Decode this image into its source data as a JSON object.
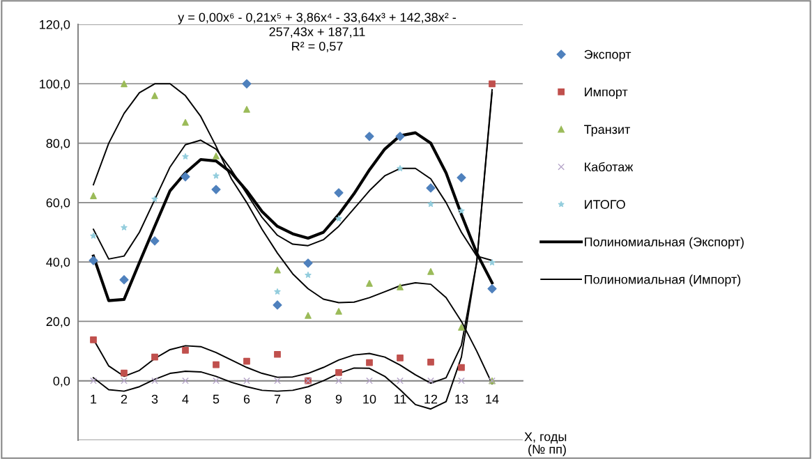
{
  "chart_data": {
    "type": "scatter",
    "annotations": [
      "y = 0,00x⁶ - 0,21x⁵ + 3,86x⁴ - 33,64x³ + 142,38x² -\n257,43x + 187,11\nR² = 0,57"
    ],
    "xlabel": "X, годы\n (№ пп)",
    "x": [
      1,
      2,
      3,
      4,
      5,
      6,
      7,
      8,
      9,
      10,
      11,
      12,
      13,
      14
    ],
    "xlim": [
      0.5,
      15
    ],
    "xticks": [
      1,
      2,
      3,
      4,
      5,
      6,
      7,
      8,
      9,
      10,
      11,
      12,
      13,
      14
    ],
    "ylim": [
      -20,
      120
    ],
    "yticks": [
      {
        "value": -20,
        "label": null
      },
      {
        "value": 0,
        "label": "0,0"
      },
      {
        "value": 20,
        "label": "20,0"
      },
      {
        "value": 40,
        "label": "40,0"
      },
      {
        "value": 60,
        "label": "60,0"
      },
      {
        "value": 80,
        "label": "80,0"
      },
      {
        "value": 100,
        "label": "100,0"
      },
      {
        "value": 120,
        "label": "120,0"
      }
    ],
    "grid": "y",
    "legend": "right",
    "series": [
      {
        "name": "Экспорт",
        "marker": "diamond",
        "color": "#4f81bd",
        "values": [
          40.5,
          34.0,
          47.1,
          68.7,
          64.4,
          100,
          25.5,
          39.6,
          63.3,
          82.3,
          82.3,
          64.9,
          68.4,
          31.0
        ]
      },
      {
        "name": "Импорт",
        "marker": "square",
        "color": "#c0504d",
        "values": [
          13.8,
          2.6,
          8.0,
          10.3,
          5.4,
          6.6,
          8.9,
          0,
          2.8,
          6.1,
          7.7,
          6.3,
          4.5,
          100
        ]
      },
      {
        "name": "Транзит",
        "marker": "triangle",
        "color": "#9bbb59",
        "values": [
          62.3,
          100,
          96,
          87,
          75.7,
          91.4,
          37.3,
          22,
          23.4,
          32.8,
          31.6,
          36.8,
          18,
          0
        ]
      },
      {
        "name": "Каботаж",
        "marker": "cross",
        "color": "#b3a2c7",
        "values": [
          0,
          0,
          0,
          0,
          0,
          0,
          0,
          0,
          0,
          0,
          0,
          0,
          0,
          0
        ]
      },
      {
        "name": "ИТОГО",
        "marker": "star",
        "color": "#93cddd",
        "values": [
          48.8,
          51.6,
          61.2,
          75.5,
          69,
          null,
          30,
          35.6,
          54.6,
          null,
          71.5,
          59.5,
          57.2,
          39.8
        ]
      },
      {
        "name": "Полиномиальная (Экспорт)",
        "type": "line",
        "color": "#000000",
        "line_style": "solid",
        "x": [
          1,
          1.5,
          2,
          2.5,
          3,
          3.5,
          4,
          4.5,
          5,
          5.5,
          6,
          6.5,
          7,
          7.5,
          8,
          8.5,
          9,
          9.5,
          10,
          10.5,
          11,
          11.5,
          12,
          12.5,
          13,
          13.5,
          14
        ],
        "values": [
          42,
          27,
          27.4,
          39.8,
          52,
          64,
          70,
          74.5,
          74,
          70,
          64,
          57,
          52,
          49.5,
          48,
          50,
          56,
          63,
          71,
          78,
          82.5,
          83.5,
          80,
          70,
          56,
          43,
          33
        ]
      },
      {
        "name": "Полиномиальная (Импорт)",
        "type": "line",
        "color": "#000000",
        "line_style": "solid",
        "x": [
          1,
          1.5,
          2,
          2.5,
          3,
          3.5,
          4,
          4.5,
          5,
          5.5,
          6,
          6.5,
          7,
          7.5,
          8,
          8.5,
          9,
          9.5,
          10,
          10.5,
          11,
          11.5,
          12,
          12.5,
          13,
          13.5,
          14
        ],
        "values": [
          14,
          5,
          1.5,
          3.5,
          7.5,
          10.5,
          11.8,
          11.5,
          9.5,
          7,
          4.5,
          2.5,
          1.2,
          1.3,
          2.5,
          4.5,
          7,
          8.7,
          9.2,
          8,
          5.3,
          2,
          -0.8,
          1,
          12,
          40,
          97
        ]
      },
      {
        "type": "line",
        "color": "#000000",
        "line_style": "solid",
        "x": [
          1,
          1.5,
          2,
          2.5,
          3,
          3.5,
          4,
          4.5,
          5,
          5.5,
          6,
          6.5,
          7,
          7.5,
          8,
          8.5,
          9,
          9.5,
          10,
          10.5,
          11,
          11.5,
          12,
          12.5,
          13,
          13.5,
          14
        ],
        "values": [
          66,
          80,
          90,
          97,
          100,
          100,
          96,
          89,
          79,
          68,
          60,
          51,
          43,
          36,
          31,
          27.5,
          26.3,
          26.5,
          28,
          30,
          32,
          33,
          32.5,
          28,
          20,
          10,
          -1
        ]
      },
      {
        "type": "line",
        "color": "#000000",
        "line_style": "solid",
        "x": [
          1,
          1.5,
          2,
          2.5,
          3,
          3.5,
          4,
          4.5,
          5,
          5.5,
          6,
          6.5,
          7,
          7.5,
          8,
          8.5,
          9,
          9.5,
          10,
          10.5,
          11,
          11.5,
          12,
          12.5,
          13,
          13.5,
          14
        ],
        "values": [
          1,
          -3,
          -3.5,
          -2,
          0.5,
          2.5,
          3.2,
          3,
          1.5,
          -0.5,
          -2,
          -3.2,
          -3.5,
          -3.2,
          -2,
          0,
          2.5,
          4.3,
          4.2,
          1.5,
          -3,
          -8,
          -9.5,
          -7,
          8,
          40,
          98
        ]
      },
      {
        "type": "line",
        "color": "#000000",
        "line_style": "solid",
        "x": [
          1,
          1.5,
          2,
          2.5,
          3,
          3.5,
          4,
          4.5,
          5,
          5.5,
          6,
          6.5,
          7,
          7.5,
          8,
          8.5,
          9,
          9.5,
          10,
          10.5,
          11,
          11.5,
          12,
          12.5,
          13,
          13.5,
          14
        ],
        "values": [
          51,
          41,
          42,
          50,
          61,
          72,
          79.5,
          81,
          78,
          71,
          63,
          55,
          49,
          46,
          45.5,
          47.5,
          52,
          58,
          64,
          69,
          71.5,
          71.5,
          68,
          60,
          50,
          42,
          40.5
        ]
      }
    ]
  }
}
